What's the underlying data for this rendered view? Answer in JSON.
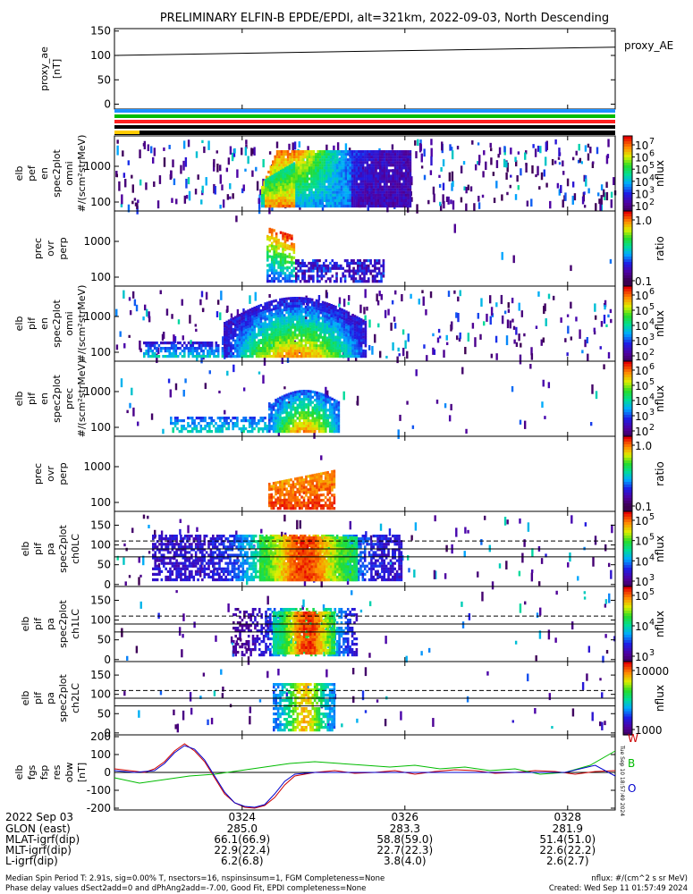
{
  "chart_data": {
    "type": "heatmap",
    "title": "PRELIMINARY ELFIN-B EPDE/EPDI, alt=321km, 2022-09-03, North Descending",
    "x_axis": {
      "date_label": "2022 Sep 03",
      "time_ticks": [
        "0324",
        "0326",
        "0328"
      ],
      "rows": [
        {
          "label": "GLON (east)",
          "values": [
            "285.0",
            "283.3",
            "281.9"
          ]
        },
        {
          "label": "MLAT-igrf(dip)",
          "values": [
            "66.1(66.9)",
            "58.8(59.0)",
            "51.4(51.0)"
          ]
        },
        {
          "label": "MLT-igrf(dip)",
          "values": [
            "22.9(22.4)",
            "22.7(22.3)",
            "22.6(22.2)"
          ]
        },
        {
          "label": "L-igrf(dip)",
          "values": [
            "6.2(6.8)",
            "3.8(4.0)",
            "2.6(2.7)"
          ]
        }
      ]
    },
    "panels": [
      {
        "id": "proxy_ae",
        "type": "line",
        "ylabel": [
          "proxy_ae",
          "[nT]"
        ],
        "yticks": [
          "150",
          "100",
          "50",
          "0"
        ],
        "ylim": [
          -10,
          155
        ],
        "series": [
          {
            "name": "proxy_AE",
            "color": "#000000",
            "x": [
              0,
              1
            ],
            "y": [
              100,
              117
            ]
          }
        ]
      },
      {
        "id": "status_bars",
        "type": "bars",
        "colors": [
          "#1e90ff",
          "#00bb00",
          "#ff2020",
          "#000000",
          "#ffcc00"
        ]
      },
      {
        "id": "elb_pef_en_spec2plot_omni",
        "type": "heatmap",
        "ylabel": [
          "elb",
          "pef",
          "en",
          "spec2plot",
          "omni",
          "#/(scm²strMeV)"
        ],
        "yticks": [
          "1000",
          "100"
        ],
        "colorbar": {
          "label": "nflux",
          "ticks": [
            "10",
            "10",
            "10",
            "10",
            "10",
            "10"
          ],
          "exponents": [
            "7",
            "6",
            "5",
            "4",
            "3",
            "2"
          ]
        }
      },
      {
        "id": "elb_pef_prec_ovr_perp",
        "type": "heatmap",
        "ylabel": [
          "prec",
          "ovr",
          "perp"
        ],
        "yticks": [
          "1000",
          "100"
        ],
        "colorbar": {
          "label": "ratio",
          "ticks": [
            "1.0",
            "0.1"
          ]
        }
      },
      {
        "id": "elb_pif_en_spec2plot_omni",
        "type": "heatmap",
        "ylabel": [
          "elb",
          "pif",
          "en",
          "spec2plot",
          "omni",
          "#/(scm²strMeV)"
        ],
        "yticks": [
          "1000",
          "100"
        ],
        "colorbar": {
          "label": "nflux",
          "ticks": [
            "10",
            "10",
            "10",
            "10",
            "10"
          ],
          "exponents": [
            "6",
            "5",
            "4",
            "3",
            "2"
          ]
        }
      },
      {
        "id": "elb_pif_en_spec2plot_prec",
        "type": "heatmap",
        "ylabel": [
          "elb",
          "pif",
          "en",
          "spec2plot",
          "prec",
          "#/(scm²strMeV)"
        ],
        "yticks": [
          "1000",
          "100"
        ],
        "colorbar": {
          "label": "nflux",
          "ticks": [
            "10",
            "10",
            "10",
            "10",
            "10"
          ],
          "exponents": [
            "6",
            "5",
            "4",
            "3",
            "2"
          ]
        }
      },
      {
        "id": "elb_pif_prec_ovr_perp",
        "type": "heatmap",
        "ylabel": [
          "prec",
          "ovr",
          "perp"
        ],
        "yticks": [
          "1000",
          "100"
        ],
        "colorbar": {
          "label": "ratio",
          "ticks": [
            "1.0",
            "0.1"
          ]
        }
      },
      {
        "id": "elb_pif_pa_spec2plot_ch0LC",
        "type": "heatmap",
        "ylabel": [
          "elb",
          "pif",
          "pa",
          "spec2plot",
          "ch0LC"
        ],
        "yticks": [
          "150",
          "100",
          "50",
          "0"
        ],
        "colorbar": {
          "label": "nflux",
          "ticks": [
            "10",
            "10",
            "10",
            "10"
          ],
          "exponents": [
            "5",
            "5",
            "4",
            "3"
          ]
        }
      },
      {
        "id": "elb_pif_pa_spec2plot_ch1LC",
        "type": "heatmap",
        "ylabel": [
          "elb",
          "pif",
          "pa",
          "spec2plot",
          "ch1LC"
        ],
        "yticks": [
          "150",
          "100",
          "50",
          "0"
        ],
        "colorbar": {
          "label": "nflux",
          "ticks": [
            "10",
            "10",
            "10"
          ],
          "exponents": [
            "5",
            "4",
            "3"
          ]
        }
      },
      {
        "id": "elb_pif_pa_spec2plot_ch2LC",
        "type": "heatmap",
        "ylabel": [
          "elb",
          "pif",
          "pa",
          "spec2plot",
          "ch2LC"
        ],
        "yticks": [
          "150",
          "100",
          "50",
          "0"
        ],
        "colorbar": {
          "label": "nflux",
          "ticks": [
            "10000",
            "1000"
          ]
        }
      },
      {
        "id": "elb_fgs_fsp_res_obw",
        "type": "line",
        "ylabel": [
          "elb",
          "fgs",
          "fsp",
          "res",
          "obw",
          "[nT]"
        ],
        "yticks": [
          "200",
          "100",
          "0",
          "-100",
          "-200"
        ],
        "ylim": [
          -210,
          210
        ],
        "series": [
          {
            "name": "W",
            "color": "#cc0000",
            "x": [
              0.0,
              0.03,
              0.06,
              0.08,
              0.1,
              0.12,
              0.14,
              0.16,
              0.18,
              0.2,
              0.22,
              0.24,
              0.26,
              0.28,
              0.3,
              0.32,
              0.34,
              0.36,
              0.38,
              0.4,
              0.44,
              0.48,
              0.52,
              0.56,
              0.6,
              0.64,
              0.68,
              0.72,
              0.76,
              0.8,
              0.84,
              0.88,
              0.92,
              0.96,
              1.0
            ],
            "y": [
              20,
              10,
              0,
              20,
              60,
              120,
              160,
              120,
              60,
              -30,
              -120,
              -170,
              -195,
              -200,
              -185,
              -140,
              -70,
              -20,
              -10,
              0,
              10,
              -5,
              0,
              10,
              -10,
              5,
              15,
              10,
              -5,
              0,
              10,
              5,
              -10,
              5,
              10
            ]
          },
          {
            "name": "B",
            "color": "#00bb00",
            "x": [
              0.0,
              0.05,
              0.1,
              0.15,
              0.2,
              0.25,
              0.3,
              0.35,
              0.4,
              0.45,
              0.5,
              0.55,
              0.6,
              0.65,
              0.7,
              0.75,
              0.8,
              0.85,
              0.9,
              0.95,
              1.0
            ],
            "y": [
              -30,
              -60,
              -40,
              -20,
              -10,
              10,
              30,
              50,
              60,
              50,
              40,
              30,
              40,
              20,
              30,
              10,
              20,
              -10,
              0,
              40,
              120
            ]
          },
          {
            "name": "O",
            "color": "#0000cc",
            "x": [
              0.0,
              0.04,
              0.08,
              0.1,
              0.12,
              0.14,
              0.16,
              0.18,
              0.2,
              0.22,
              0.24,
              0.26,
              0.28,
              0.3,
              0.32,
              0.34,
              0.36,
              0.4,
              0.5,
              0.6,
              0.7,
              0.8,
              0.9,
              0.96,
              1.0
            ],
            "y": [
              10,
              0,
              10,
              50,
              110,
              150,
              130,
              70,
              -20,
              -110,
              -170,
              -190,
              -195,
              -180,
              -120,
              -50,
              -10,
              0,
              0,
              0,
              0,
              0,
              0,
              40,
              -20
            ]
          }
        ]
      }
    ],
    "side_stamp": "Tue Sep 10 18:57:49 2024"
  },
  "footer": {
    "left1": "Median Spin Period T: 2.91s, sig=0.00% T, nsectors=16, nspinsinsum=1, FGM Completeness=None",
    "left2": "Phase delay values dSect2add=0 and dPhAng2add=-7.00, Good Fit, EPDI completeness=None",
    "right1": "nflux: #/(cm^2 s sr MeV)",
    "right2": "Created: Wed Sep 11 01:57:49 2024"
  }
}
